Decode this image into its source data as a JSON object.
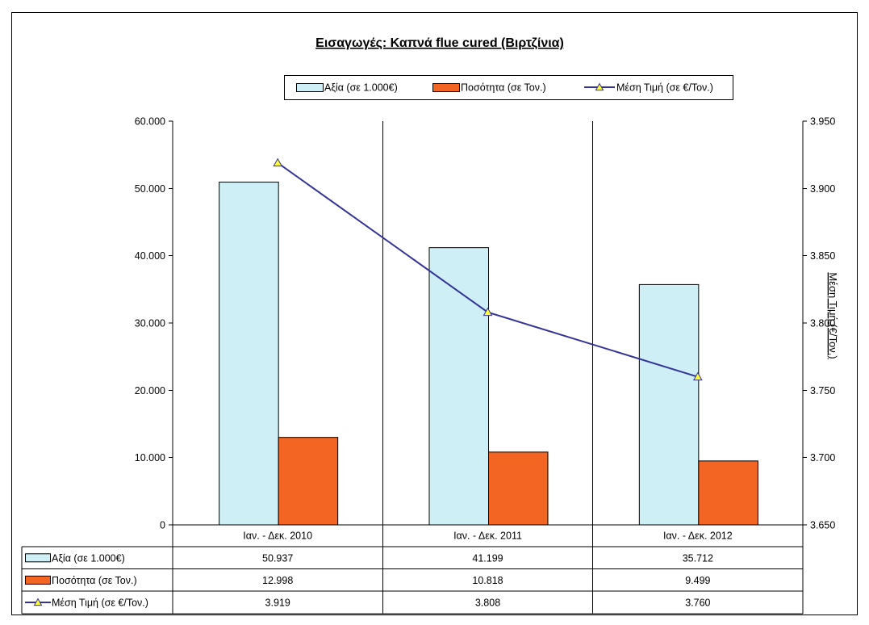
{
  "chart_data": {
    "type": "bar",
    "title": "Εισαγωγές: Καπνά flue cured (Βιρτζίνια)",
    "categories": [
      "Ιαν. - Δεκ. 2010",
      "Ιαν. - Δεκ. 2011",
      "Ιαν. - Δεκ. 2012"
    ],
    "series": [
      {
        "name": "Αξία (σε 1.000€)",
        "type": "bar",
        "y_axis": "left",
        "values": [
          50937,
          41199,
          35712
        ],
        "color": "#cdeff5"
      },
      {
        "name": "Ποσότητα (σε Τον.)",
        "type": "bar",
        "y_axis": "left",
        "values": [
          12998,
          10818,
          9499
        ],
        "color": "#f26522"
      },
      {
        "name": "Μέση Τιμή (σε €/Τον.)",
        "type": "line",
        "y_axis": "right",
        "values": [
          3919,
          3808,
          3760
        ],
        "color": "#333399",
        "marker": "triangle",
        "marker_color": "#ffff33"
      }
    ],
    "y2label": "Μέση Τιμή (€/Τον.)",
    "ylim": [
      0,
      60000
    ],
    "yticks_step": 10000,
    "y2lim": [
      3650,
      3950
    ],
    "y2ticks_step": 50,
    "legend": "top",
    "data_table": true,
    "grid": {
      "x": true,
      "y": false
    }
  }
}
